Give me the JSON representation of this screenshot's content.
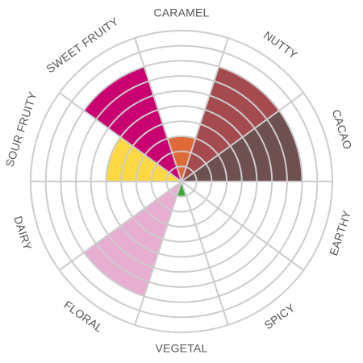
{
  "chart_data": {
    "type": "radial-bar",
    "title": "",
    "scale_max": 10,
    "categories": [
      "CARAMEL",
      "NUTTY",
      "CACAO",
      "EARTHY",
      "SPICY",
      "VEGETAL",
      "FLORAL",
      "DAIRY",
      "SOUR FRUITY",
      "SWEET FRUITY"
    ],
    "values": [
      3,
      8,
      8,
      0,
      0,
      1,
      8,
      0,
      5,
      8
    ],
    "colors": [
      "#e06a37",
      "#a54b4f",
      "#6e5050",
      "#cccccc",
      "#cccccc",
      "#3aaa3a",
      "#e8aed2",
      "#cccccc",
      "#fcd844",
      "#c80070"
    ],
    "grid": true,
    "grid_color": "#cccccc"
  }
}
